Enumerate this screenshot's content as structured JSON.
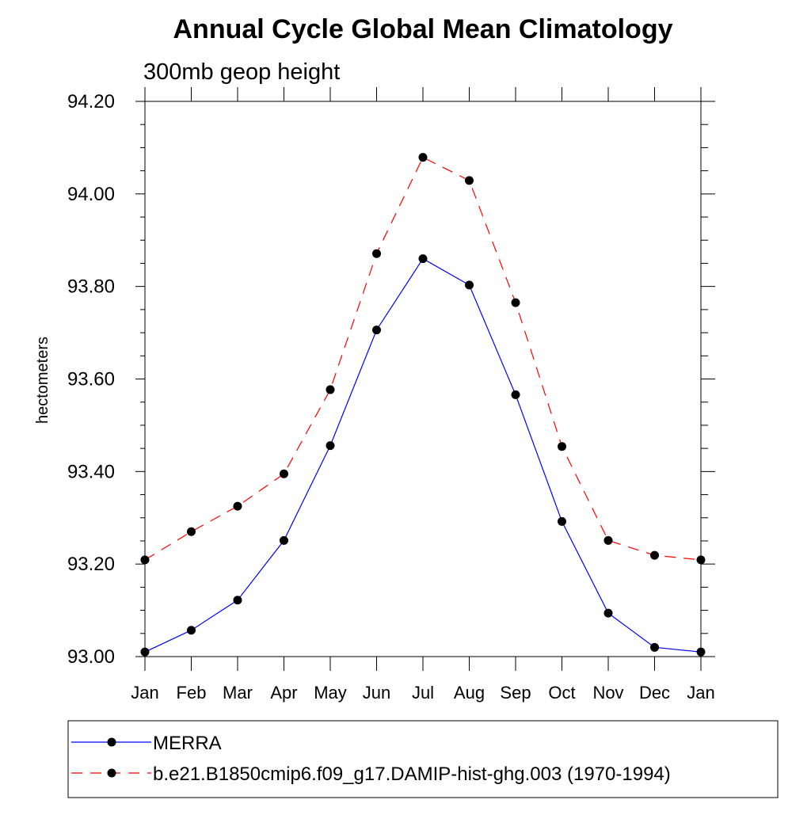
{
  "chart_data": {
    "type": "line",
    "title": "Annual Cycle Global Mean Climatology",
    "subtitle": "300mb geop height",
    "ylabel": "hectometers",
    "xlabel": "",
    "categories": [
      "Jan",
      "Feb",
      "Mar",
      "Apr",
      "May",
      "Jun",
      "Jul",
      "Aug",
      "Sep",
      "Oct",
      "Nov",
      "Dec",
      "Jan"
    ],
    "ylim": [
      93.0,
      94.2
    ],
    "yticks": [
      "93.00",
      "93.20",
      "93.40",
      "93.60",
      "93.80",
      "94.00",
      "94.20"
    ],
    "ytick_values": [
      93.0,
      93.2,
      93.4,
      93.6,
      93.8,
      94.0,
      94.2
    ],
    "grid": false,
    "legend_position": "bottom",
    "series": [
      {
        "name": "MERRA",
        "color": "#0000ff",
        "line_style": "solid",
        "marker": "filled-circle",
        "values": [
          93.01,
          93.057,
          93.122,
          93.251,
          93.456,
          93.706,
          93.86,
          93.803,
          93.566,
          93.292,
          93.094,
          93.02,
          93.01
        ]
      },
      {
        "name": "b.e21.B1850cmip6.f09_g17.DAMIP-hist-ghg.003 (1970-1994)",
        "color": "#ff0000",
        "line_style": "dashed",
        "marker": "filled-circle",
        "values": [
          93.209,
          93.27,
          93.325,
          93.395,
          93.577,
          93.871,
          94.079,
          94.029,
          93.765,
          93.454,
          93.251,
          93.219,
          93.209
        ]
      }
    ]
  }
}
